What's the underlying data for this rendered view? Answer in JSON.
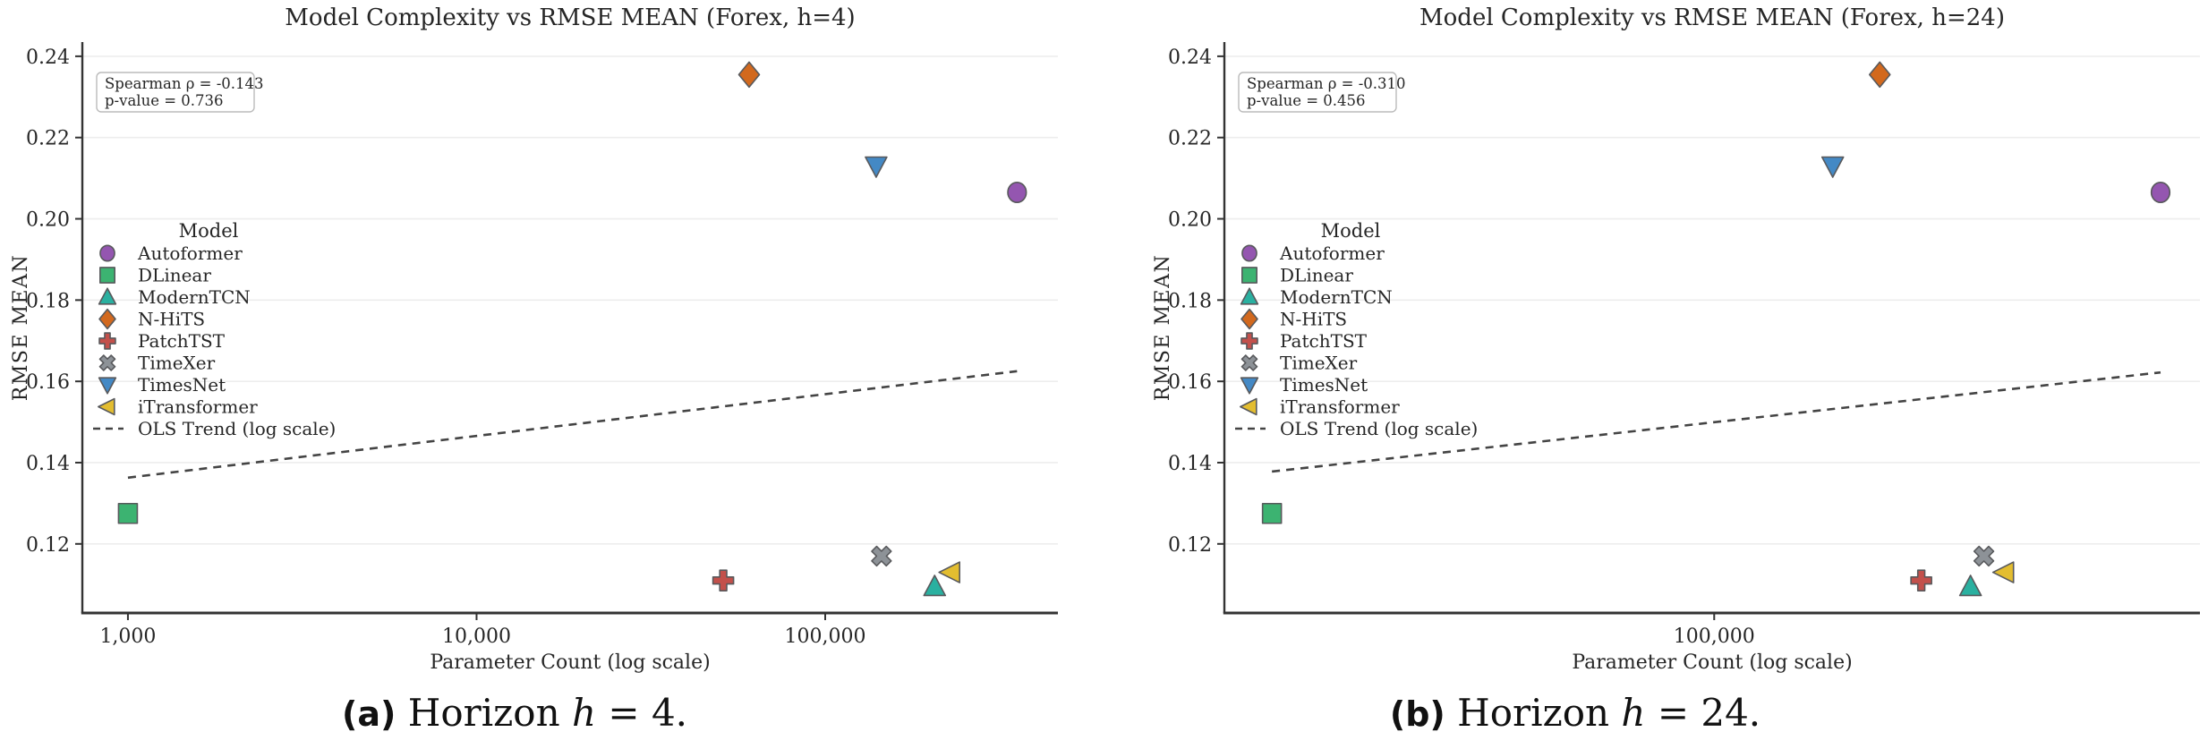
{
  "figure_background": "#ffffff",
  "style": {
    "grid_color": "#ededed",
    "spine_color": "#333333",
    "text_color": "#262626",
    "trend_color": "#444444",
    "marker_edge": "#58595c",
    "annotation_border": "#bbbbbb"
  },
  "markers": {
    "Autoformer": {
      "shape": "circle",
      "color": "#9456b0"
    },
    "DLinear": {
      "shape": "square",
      "color": "#3cb371"
    },
    "ModernTCN": {
      "shape": "triangle-up",
      "color": "#2ab0a0"
    },
    "N-HiTS": {
      "shape": "diamond",
      "color": "#d2691e"
    },
    "PatchTST": {
      "shape": "plus",
      "color": "#c3504b"
    },
    "TimeXer": {
      "shape": "x",
      "color": "#8d9297"
    },
    "TimesNet": {
      "shape": "triangle-down",
      "color": "#4489c5"
    },
    "iTransformer": {
      "shape": "triangle-left",
      "color": "#e3bd30"
    }
  },
  "chart_data": [
    {
      "type": "scatter",
      "title": "Model Complexity vs RMSE MEAN (Forex, h=4)",
      "xlabel": "Parameter Count (log scale)",
      "ylabel": "RMSE MEAN",
      "xscale": "log",
      "xlim": [
        740,
        465000
      ],
      "ylim": [
        0.103,
        0.2435
      ],
      "xticks": [
        {
          "v": 1000,
          "label": "1,000"
        },
        {
          "v": 10000,
          "label": "10,000"
        },
        {
          "v": 100000,
          "label": "100,000"
        }
      ],
      "yticks": [
        0.12,
        0.14,
        0.16,
        0.18,
        0.2,
        0.22,
        0.24
      ],
      "grid": true,
      "legend_title": "Model",
      "legend_position": "center-left-inside",
      "annotation": [
        "Spearman ρ = -0.143",
        "p-value = 0.736"
      ],
      "points": [
        {
          "model": "Autoformer",
          "x": 355000,
          "y": 0.2065
        },
        {
          "model": "DLinear",
          "x": 1000,
          "y": 0.1275
        },
        {
          "model": "ModernTCN",
          "x": 206000,
          "y": 0.1095
        },
        {
          "model": "N-HiTS",
          "x": 60500,
          "y": 0.2355
        },
        {
          "model": "PatchTST",
          "x": 51000,
          "y": 0.111
        },
        {
          "model": "TimeXer",
          "x": 145000,
          "y": 0.117
        },
        {
          "model": "TimesNet",
          "x": 140000,
          "y": 0.213
        },
        {
          "model": "iTransformer",
          "x": 229000,
          "y": 0.113
        }
      ],
      "trend": {
        "label": "OLS Trend (log scale)",
        "x": [
          1000,
          355000
        ],
        "y": [
          0.1363,
          0.1625
        ]
      }
    },
    {
      "type": "scatter",
      "title": "Model Complexity vs RMSE MEAN (Forex, h=24)",
      "xlabel": "Parameter Count (log scale)",
      "ylabel": "RMSE MEAN",
      "xscale": "log",
      "xlim": [
        24900,
        397000
      ],
      "ylim": [
        0.103,
        0.2435
      ],
      "xticks": [
        {
          "v": 100000,
          "label": "100,000"
        }
      ],
      "yticks": [
        0.12,
        0.14,
        0.16,
        0.18,
        0.2,
        0.22,
        0.24
      ],
      "grid": true,
      "legend_title": "Model",
      "legend_position": "center-left-inside",
      "annotation": [
        "Spearman ρ = -0.310",
        "p-value = 0.456"
      ],
      "points": [
        {
          "model": "Autoformer",
          "x": 355000,
          "y": 0.2065
        },
        {
          "model": "DLinear",
          "x": 28500,
          "y": 0.1275
        },
        {
          "model": "ModernTCN",
          "x": 207000,
          "y": 0.1095
        },
        {
          "model": "N-HiTS",
          "x": 160000,
          "y": 0.2355
        },
        {
          "model": "PatchTST",
          "x": 180000,
          "y": 0.111
        },
        {
          "model": "TimeXer",
          "x": 215000,
          "y": 0.117
        },
        {
          "model": "TimesNet",
          "x": 140000,
          "y": 0.213
        },
        {
          "model": "iTransformer",
          "x": 228000,
          "y": 0.113
        }
      ],
      "trend": {
        "label": "OLS Trend (log scale)",
        "x": [
          28500,
          355000
        ],
        "y": [
          0.1378,
          0.1622
        ]
      }
    }
  ],
  "captions": [
    {
      "label": "(a)",
      "text": "Horizon",
      "var": "h",
      "eq": "= 4."
    },
    {
      "label": "(b)",
      "text": "Horizon",
      "var": "h",
      "eq": "= 24."
    }
  ]
}
